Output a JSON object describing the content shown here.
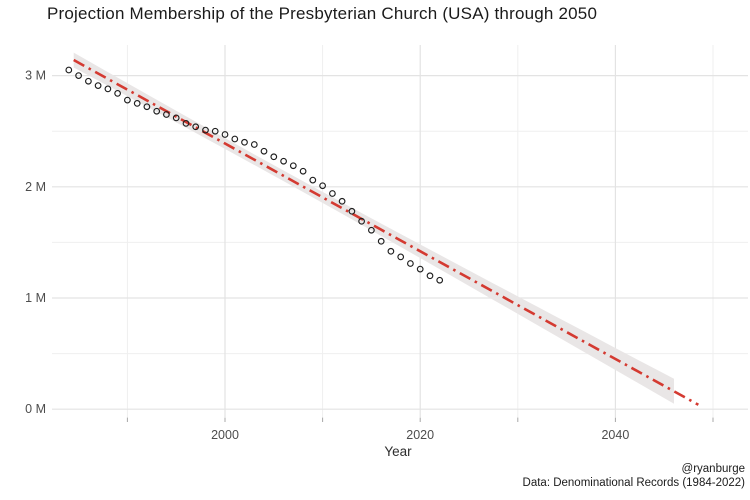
{
  "title": "Projection Membership of the Presbyterian Church (USA) through 2050",
  "caption": {
    "handle": "@ryanburge",
    "source": "Data: Denominational Records (1984-2022)"
  },
  "chart_data": {
    "type": "scatter",
    "title": "Projection Membership of the Presbyterian Church (USA) through 2050",
    "xlabel": "Year",
    "ylabel": "",
    "xlim": [
      1982,
      2053.5
    ],
    "ylim": [
      -0.07,
      3.27
    ],
    "grid": true,
    "legend": "none",
    "x_major_ticks": [
      2000,
      2020,
      2040
    ],
    "x_major_tick_labels": [
      "2000",
      "2020",
      "2040"
    ],
    "x_minor_ticks": [
      1990,
      2010,
      2030,
      2050
    ],
    "y_major_ticks": [
      0,
      1,
      2,
      3
    ],
    "y_major_tick_labels": [
      "0 M",
      "1 M",
      "2 M",
      "3 M"
    ],
    "y_minor_ticks": [
      0.5,
      1.5,
      2.5
    ],
    "colors": {
      "grid_major": "#e3e3e3",
      "grid_minor": "#efefef",
      "axis_tick": "#a8a8a8",
      "axis_text": "#4d4d4d",
      "point_stroke": "#1f1f1f",
      "trend_line": "#d43a31",
      "ci_band": "#e9e6e6"
    },
    "series": [
      {
        "name": "reported-membership",
        "type": "scatter",
        "marker": "open-circle",
        "x": [
          1984,
          1985,
          1986,
          1987,
          1988,
          1989,
          1990,
          1991,
          1992,
          1993,
          1994,
          1995,
          1996,
          1997,
          1998,
          1999,
          2000,
          2001,
          2002,
          2003,
          2004,
          2005,
          2006,
          2007,
          2008,
          2009,
          2010,
          2011,
          2012,
          2013,
          2014,
          2015,
          2016,
          2017,
          2018,
          2019,
          2020,
          2021,
          2022
        ],
        "y": [
          3.05,
          3.0,
          2.95,
          2.91,
          2.88,
          2.84,
          2.78,
          2.75,
          2.72,
          2.68,
          2.65,
          2.62,
          2.57,
          2.54,
          2.51,
          2.5,
          2.47,
          2.43,
          2.4,
          2.38,
          2.32,
          2.27,
          2.23,
          2.19,
          2.14,
          2.06,
          2.01,
          1.94,
          1.87,
          1.78,
          1.69,
          1.61,
          1.51,
          1.42,
          1.37,
          1.31,
          1.26,
          1.2,
          1.16
        ]
      },
      {
        "name": "linear-projection",
        "type": "line",
        "style": "dash-dot",
        "x": [
          1984.5,
          2048.5
        ],
        "y": [
          3.14,
          0.04
        ],
        "ci": {
          "x_start": 1984.5,
          "x_end": 2046,
          "center_year": 2004,
          "half_width_start": 0.067,
          "half_width_end": 0.112
        }
      }
    ]
  }
}
